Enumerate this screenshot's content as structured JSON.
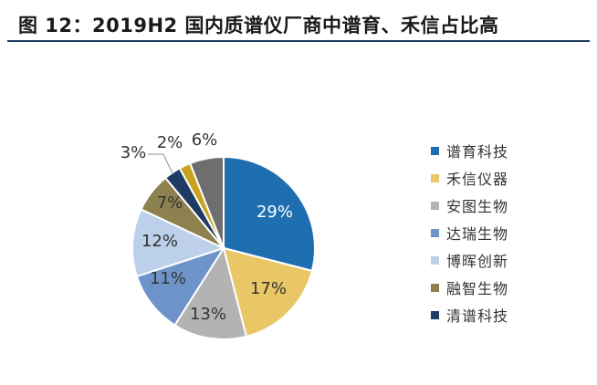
{
  "figure": {
    "title": "图 12：2019H2 国内质谱仪厂商中谱育、禾信占比高"
  },
  "chart_data": {
    "type": "pie",
    "start": "12 o'clock, clockwise",
    "slices": [
      {
        "name": "谱育科技",
        "value": 29,
        "label": "29%",
        "color": "#1f6fb0"
      },
      {
        "name": "禾信仪器",
        "value": 17,
        "label": "17%",
        "color": "#e9c766"
      },
      {
        "name": "安图生物",
        "value": 13,
        "label": "13%",
        "color": "#b3b3b3"
      },
      {
        "name": "达瑞生物",
        "value": 11,
        "label": "11%",
        "color": "#6d93c9"
      },
      {
        "name": "博晖创新",
        "value": 12,
        "label": "12%",
        "color": "#bcd0ea"
      },
      {
        "name": "融智生物",
        "value": 7,
        "label": "7%",
        "color": "#8e8150"
      },
      {
        "name": "清谱科技",
        "value": 3,
        "label": "3%",
        "color": "#1d3b63"
      },
      {
        "name": "",
        "value": 2,
        "label": "2%",
        "color": "#c8a220"
      },
      {
        "name": "",
        "value": 6,
        "label": "6%",
        "color": "#6e6e6e"
      }
    ],
    "legend": {
      "position": "right",
      "entries": [
        "谱育科技",
        "禾信仪器",
        "安图生物",
        "达瑞生物",
        "博晖创新",
        "融智生物",
        "清谱科技"
      ]
    }
  }
}
